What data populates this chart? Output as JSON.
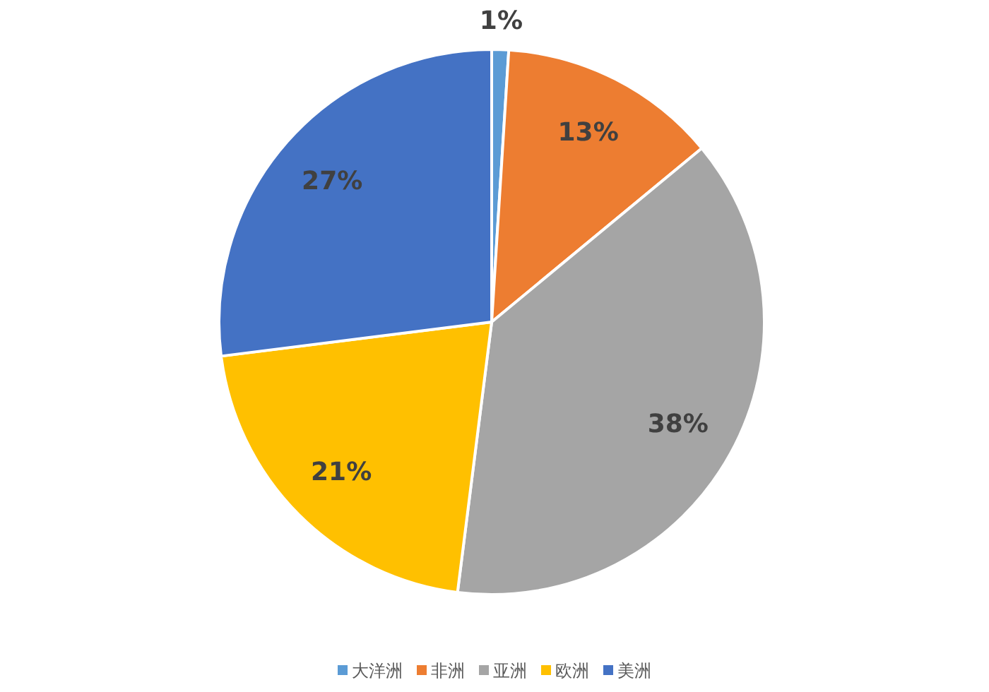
{
  "chart_data": {
    "type": "pie",
    "categories": [
      "大洋洲",
      "非洲",
      "亚洲",
      "欧洲",
      "美洲"
    ],
    "values": [
      1,
      13,
      38,
      21,
      27
    ],
    "colors": [
      "#5b9bd5",
      "#ed7d31",
      "#a5a5a5",
      "#ffc000",
      "#4472c4"
    ],
    "value_labels": [
      "1%",
      "13%",
      "38%",
      "21%",
      "27%"
    ],
    "legend": "bottom"
  }
}
